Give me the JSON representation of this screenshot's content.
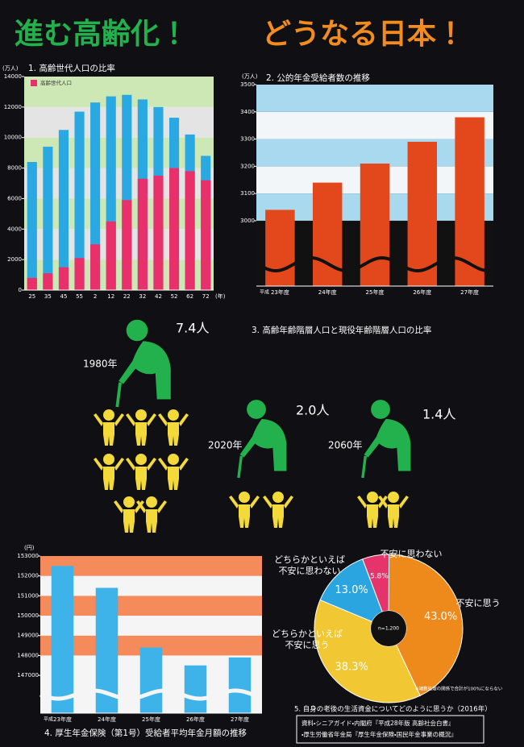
{
  "header": {
    "title_left": "進む高齢化！",
    "title_right": "どうなる日本！"
  },
  "chart_data": [
    {
      "type": "bar",
      "title": "1. 高齢世代人口の比率",
      "y_unit": "(万人)",
      "xlabel": "(年)",
      "barmode": "overlay",
      "categories": [
        "25",
        "35",
        "45",
        "55",
        "2",
        "12",
        "22",
        "32",
        "42",
        "52",
        "62",
        "72"
      ],
      "series": [
        {
          "color": "#2aa8e2",
          "values": [
            8400,
            9400,
            10500,
            11700,
            12300,
            12700,
            12800,
            12500,
            12000,
            11300,
            10200,
            8800
          ]
        },
        {
          "name": "高齢世代人口",
          "color": "#e8306a",
          "values": [
            800,
            1100,
            1500,
            2100,
            3000,
            4500,
            5900,
            7300,
            7500,
            8000,
            7800,
            7200
          ]
        }
      ],
      "ylim": [
        0,
        14000
      ],
      "yticks": [
        0,
        2000,
        4000,
        6000,
        8000,
        10000,
        12000,
        14000
      ],
      "legend": "upper-left"
    },
    {
      "type": "bar",
      "title": "2. 公的年金受給者数の推移",
      "y_unit": "(万人)",
      "x_prefix": "平成",
      "categories": [
        "23年度",
        "24年度",
        "25年度",
        "26年度",
        "27年度"
      ],
      "values": [
        3040,
        3140,
        3210,
        3290,
        3380
      ],
      "color": "#e2481c",
      "ylim": [
        2760,
        3500
      ],
      "yticks": [
        3000,
        3100,
        3200,
        3300,
        3400,
        3500
      ],
      "axis_break": true
    },
    {
      "type": "bar",
      "title": "4. 厚生年金保険（第1号）受給者平均年金月額の推移",
      "y_unit": "(円)",
      "x_prefix": "平成",
      "categories": [
        "23年度",
        "24年度",
        "25年度",
        "26年度",
        "27年度"
      ],
      "values": [
        152500,
        151400,
        148400,
        147500,
        147900
      ],
      "color": "#3db3ea",
      "ylim": [
        145100,
        153000
      ],
      "yticks": [
        147000,
        148000,
        149000,
        150000,
        151000,
        152000,
        153000
      ],
      "axis_break": true
    },
    {
      "type": "pie",
      "title": "5. 自身の老後の生活資金についてどのように思うか（2016年）",
      "center_label": "n=1,200",
      "note": "※端数処理の関係で合計が100%にならない",
      "categories": [
        "不安に思う",
        "どちらかといえば不安に思う",
        "どちらかといえば不安に思わない",
        "不安に思わない"
      ],
      "values": [
        43.0,
        38.3,
        13.0,
        5.8
      ],
      "value_labels": [
        "43.0%",
        "38.3%",
        "13.0%",
        "5.8%"
      ],
      "colors": [
        "#ee8a1c",
        "#f1c833",
        "#2aa5e0",
        "#e5336b"
      ]
    }
  ],
  "ratio_figure": {
    "title": "3. 高齢年齢階層人口と現役年齢階層人口の比率",
    "items": [
      {
        "year": "1980年",
        "ratio": "7.4人"
      },
      {
        "year": "2020年",
        "ratio": "2.0人"
      },
      {
        "year": "2060年",
        "ratio": "1.4人"
      }
    ]
  },
  "sources": {
    "line1": "資料・シニアガイド・内閣府『平成28年版 高齢社会白書』",
    "line2": "・厚生労働省年金局『厚生年金保険・国民年金事業の概況』"
  }
}
